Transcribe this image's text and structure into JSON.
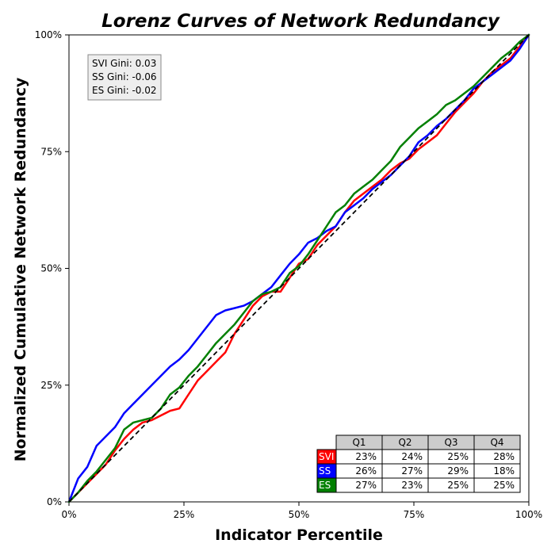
{
  "chart_data": {
    "type": "line",
    "title": "Lorenz Curves of Network Redundancy",
    "xlabel": "Indicator Percentile",
    "ylabel": "Normalized Cumulative Network Redundancy",
    "xlim": [
      0,
      100
    ],
    "ylim": [
      0,
      100
    ],
    "x_ticks": [
      0,
      25,
      50,
      75,
      100
    ],
    "x_tick_labels": [
      "0%",
      "25%",
      "50%",
      "75%",
      "100%"
    ],
    "y_ticks": [
      0,
      25,
      50,
      75,
      100
    ],
    "y_tick_labels": [
      "0%",
      "25%",
      "50%",
      "75%",
      "100%"
    ],
    "grid": false,
    "reference_line": {
      "style": "dashed",
      "color": "#000000",
      "from": [
        0,
        0
      ],
      "to": [
        100,
        100
      ]
    },
    "series": [
      {
        "name": "SVI",
        "color": "#ff0000",
        "x": [
          0,
          2,
          4,
          6,
          8,
          10,
          12,
          14,
          16,
          18,
          20,
          22,
          24,
          26,
          28,
          30,
          32,
          34,
          36,
          38,
          40,
          42,
          44,
          46,
          48,
          50,
          52,
          54,
          56,
          58,
          60,
          62,
          64,
          66,
          68,
          70,
          72,
          74,
          76,
          78,
          80,
          82,
          84,
          86,
          88,
          90,
          92,
          94,
          96,
          98,
          100
        ],
        "y": [
          0,
          2,
          4,
          6,
          8,
          11,
          13.5,
          15.5,
          17,
          17.5,
          18.5,
          19.5,
          20,
          23,
          26,
          28,
          30,
          32,
          36,
          39,
          42,
          44,
          45,
          45,
          48,
          51,
          52,
          55,
          57,
          59,
          62,
          64.5,
          66,
          67.5,
          69,
          71,
          72.5,
          73.5,
          75.5,
          77,
          78.5,
          81,
          83.5,
          85.5,
          87.5,
          90,
          92,
          93.5,
          95,
          97.5,
          100
        ]
      },
      {
        "name": "SS",
        "color": "#0000ff",
        "x": [
          0,
          2,
          4,
          6,
          8,
          10,
          12,
          14,
          16,
          18,
          20,
          22,
          24,
          26,
          28,
          30,
          32,
          34,
          36,
          38,
          40,
          42,
          44,
          46,
          48,
          50,
          52,
          54,
          56,
          58,
          60,
          62,
          64,
          66,
          68,
          70,
          72,
          74,
          76,
          78,
          80,
          82,
          84,
          86,
          88,
          90,
          92,
          94,
          96,
          98,
          100
        ],
        "y": [
          0,
          5,
          7.5,
          12,
          14,
          16,
          19,
          21,
          23,
          25,
          27,
          29,
          30.5,
          32.5,
          35,
          37.5,
          40,
          41,
          41.5,
          42,
          43,
          44.5,
          46,
          48.5,
          51,
          53,
          55.5,
          56.5,
          58,
          59,
          62,
          63.5,
          65,
          67,
          68.5,
          70,
          72,
          74,
          77,
          78.5,
          80.5,
          82,
          84,
          86,
          88.5,
          90,
          91.5,
          93,
          94.5,
          97,
          100
        ]
      },
      {
        "name": "ES",
        "color": "#008000",
        "x": [
          0,
          2,
          4,
          6,
          8,
          10,
          12,
          14,
          16,
          18,
          20,
          22,
          24,
          26,
          28,
          30,
          32,
          34,
          36,
          38,
          40,
          42,
          44,
          46,
          48,
          50,
          52,
          54,
          56,
          58,
          60,
          62,
          64,
          66,
          68,
          70,
          72,
          74,
          76,
          78,
          80,
          82,
          84,
          86,
          88,
          90,
          92,
          94,
          96,
          98,
          100
        ],
        "y": [
          0,
          2,
          4.5,
          6.5,
          9,
          11.5,
          15.5,
          17,
          17.5,
          18,
          20,
          23,
          24.5,
          27,
          29,
          31.5,
          34,
          36,
          38,
          40.5,
          43,
          44.5,
          45,
          46,
          49,
          50.5,
          53,
          56,
          59,
          62,
          63.5,
          66,
          67.5,
          69,
          71,
          73,
          76,
          78,
          80,
          81.5,
          83,
          85,
          86,
          87.5,
          89,
          91,
          93,
          95,
          96.5,
          98.5,
          100
        ]
      }
    ],
    "gini_box": {
      "lines": [
        "SVI Gini: 0.03",
        "SS Gini: -0.06",
        "ES Gini: -0.02"
      ],
      "placement": "top-left"
    },
    "quartile_table": {
      "placement": "bottom-right",
      "columns": [
        "Q1",
        "Q2",
        "Q3",
        "Q4"
      ],
      "rows": [
        {
          "label": "SVI",
          "color": "#ff0000",
          "values": [
            "23%",
            "24%",
            "25%",
            "28%"
          ]
        },
        {
          "label": "SS",
          "color": "#0000ff",
          "values": [
            "26%",
            "27%",
            "29%",
            "18%"
          ]
        },
        {
          "label": "ES",
          "color": "#008000",
          "values": [
            "27%",
            "23%",
            "25%",
            "25%"
          ]
        }
      ]
    }
  }
}
